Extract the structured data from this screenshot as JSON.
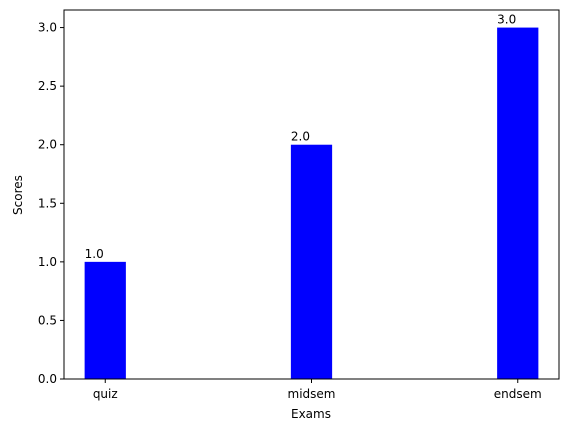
{
  "chart_data": {
    "type": "bar",
    "categories": [
      "quiz",
      "midsem",
      "endsem"
    ],
    "values": [
      1.0,
      2.0,
      3.0
    ],
    "data_labels": [
      "1.0",
      "2.0",
      "3.0"
    ],
    "xlabel": "Exams",
    "ylabel": "Scores",
    "ylim": [
      0,
      3.15
    ],
    "yticks": [
      0.0,
      0.5,
      1.0,
      1.5,
      2.0,
      2.5,
      3.0
    ],
    "ytick_labels": [
      "0.0",
      "0.5",
      "1.0",
      "1.5",
      "2.0",
      "2.5",
      "3.0"
    ],
    "grid": false,
    "bar_color": "#0000ff"
  }
}
